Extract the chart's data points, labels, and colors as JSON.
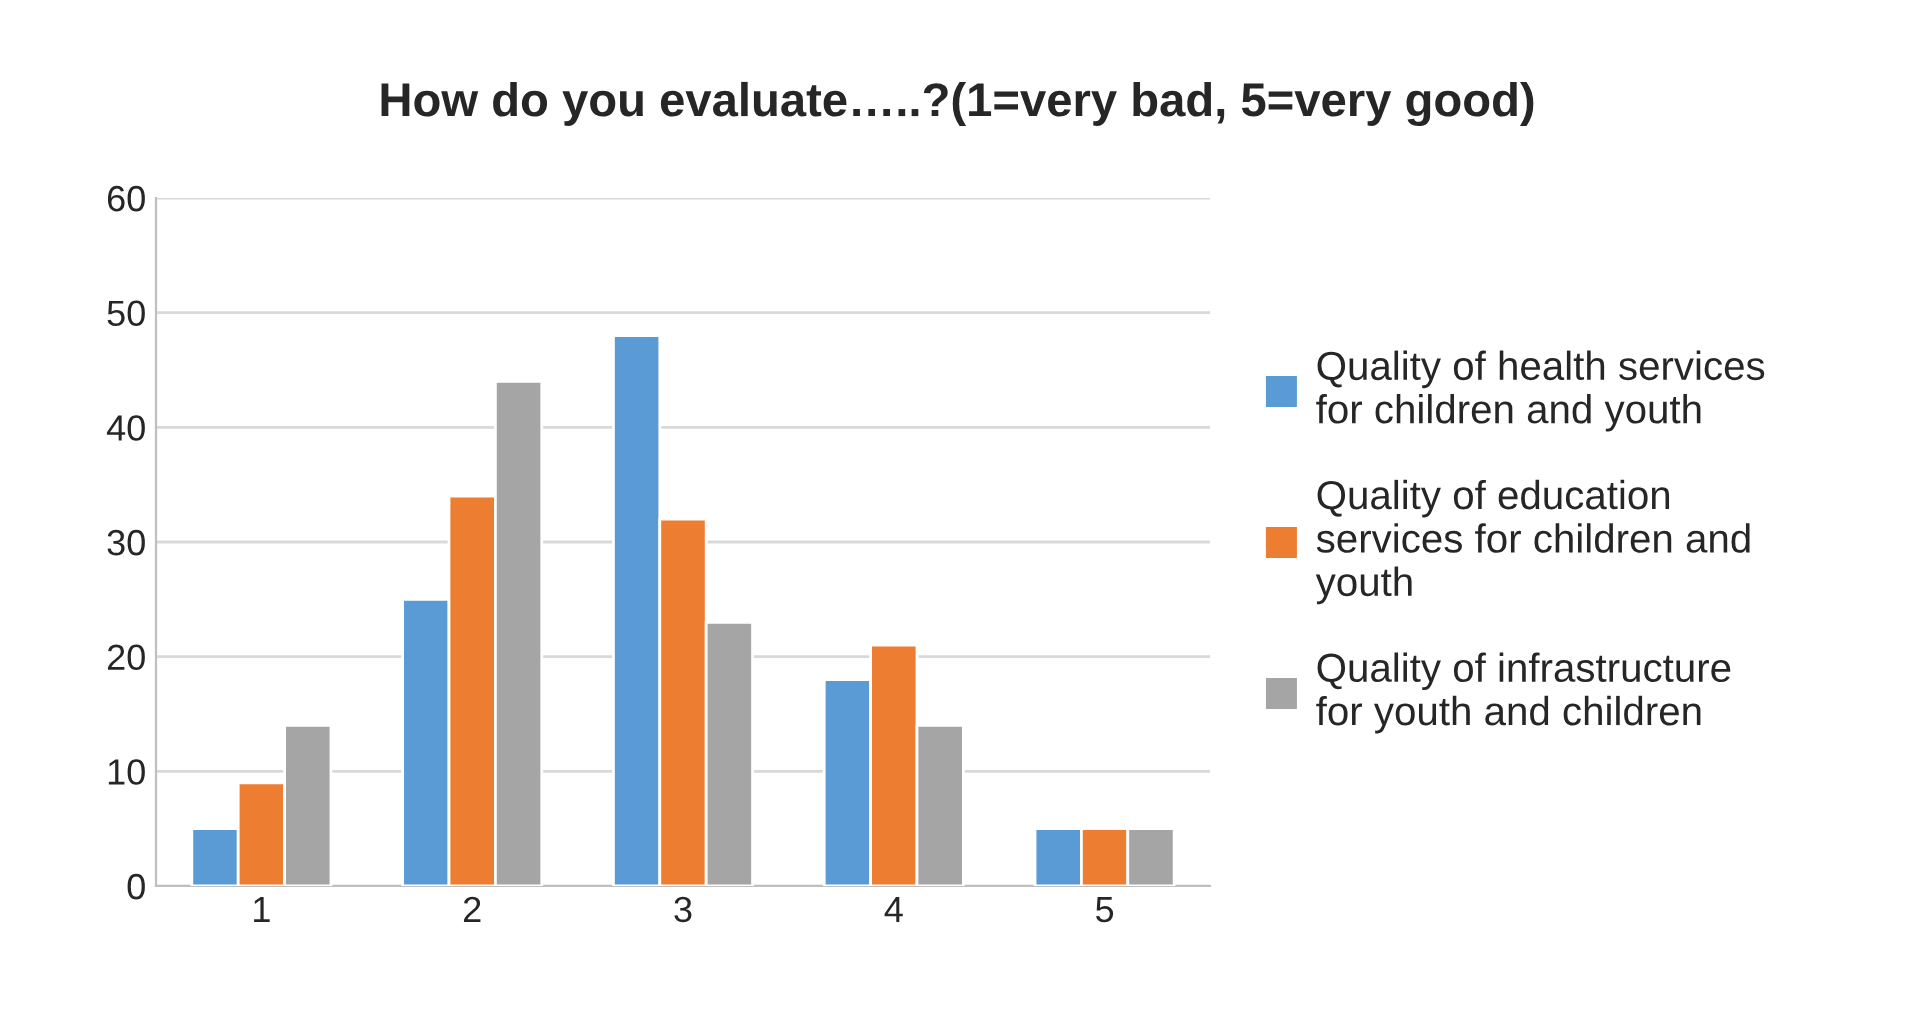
{
  "chart_data": {
    "type": "bar",
    "title": "How do you evaluate…..?(1=very bad, 5=very good)",
    "categories": [
      "1",
      "2",
      "3",
      "4",
      "5"
    ],
    "series": [
      {
        "name": "Quality of health services\nfor children and youth",
        "color": "#5b9bd5",
        "values": [
          5,
          25,
          48,
          18,
          5
        ]
      },
      {
        "name": "Quality of education\nservices for children and\nyouth",
        "color": "#ed7d31",
        "values": [
          9,
          34,
          32,
          21,
          5
        ]
      },
      {
        "name": "Quality of infrastructure\nfor youth and children",
        "color": "#a5a5a5",
        "values": [
          14,
          44,
          23,
          14,
          5
        ]
      }
    ],
    "ylim": [
      0,
      60
    ],
    "yticks": [
      0,
      10,
      20,
      30,
      40,
      50,
      60
    ],
    "grid": "y",
    "legend": "right"
  }
}
